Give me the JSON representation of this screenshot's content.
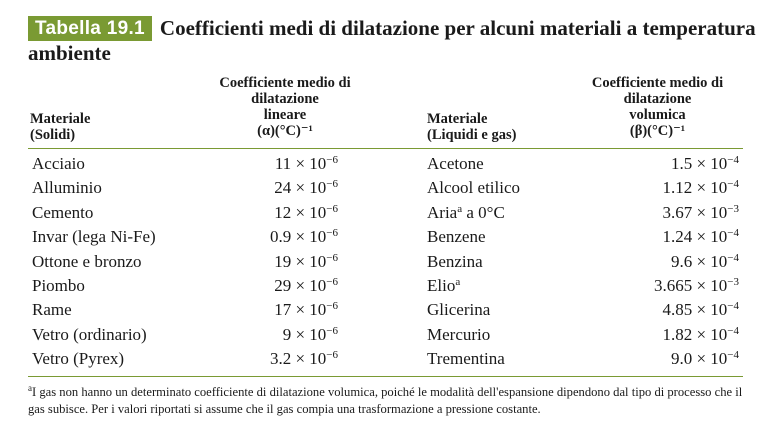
{
  "title": {
    "tag": "Tabella 19.1",
    "text": "Coefficienti medi di dilatazione per alcuni materiali a temperatura ambiente"
  },
  "headers": {
    "solid_material": [
      "Materiale",
      "(Solidi)"
    ],
    "linear_coeff": [
      "Coefficiente medio di",
      "dilatazione",
      "lineare",
      "(α)(°C)⁻¹"
    ],
    "fluid_material": [
      "Materiale",
      "(Liquidi e gas)"
    ],
    "volume_coeff": [
      "Coefficiente medio di",
      "dilatazione",
      "volumica",
      "(β)(°C)⁻¹"
    ]
  },
  "solids": [
    {
      "name": "Acciaio",
      "mantissa": "11",
      "exp": "−6"
    },
    {
      "name": "Alluminio",
      "mantissa": "24",
      "exp": "−6"
    },
    {
      "name": "Cemento",
      "mantissa": "12",
      "exp": "−6"
    },
    {
      "name": "Invar (lega Ni-Fe)",
      "mantissa": "0.9",
      "exp": "−6"
    },
    {
      "name": "Ottone e bronzo",
      "mantissa": "19",
      "exp": "−6"
    },
    {
      "name": "Piombo",
      "mantissa": "29",
      "exp": "−6"
    },
    {
      "name": "Rame",
      "mantissa": "17",
      "exp": "−6"
    },
    {
      "name": "Vetro (ordinario)",
      "mantissa": "9",
      "exp": "−6"
    },
    {
      "name": "Vetro (Pyrex)",
      "mantissa": "3.2",
      "exp": "−6"
    }
  ],
  "fluids": [
    {
      "name": "Acetone",
      "note": "",
      "suffix": "",
      "mantissa": "1.5",
      "exp": "−4"
    },
    {
      "name": "Alcool etilico",
      "note": "",
      "suffix": "",
      "mantissa": "1.12",
      "exp": "−4"
    },
    {
      "name": "Aria",
      "note": "a",
      "suffix": " a 0°C",
      "mantissa": "3.67",
      "exp": "−3"
    },
    {
      "name": "Benzene",
      "note": "",
      "suffix": "",
      "mantissa": "1.24",
      "exp": "−4"
    },
    {
      "name": "Benzina",
      "note": "",
      "suffix": "",
      "mantissa": "9.6",
      "exp": "−4"
    },
    {
      "name": "Elio",
      "note": "a",
      "suffix": "",
      "mantissa": "3.665",
      "exp": "−3"
    },
    {
      "name": "Glicerina",
      "note": "",
      "suffix": "",
      "mantissa": "4.85",
      "exp": "−4"
    },
    {
      "name": "Mercurio",
      "note": "",
      "suffix": "",
      "mantissa": "1.82",
      "exp": "−4"
    },
    {
      "name": "Trementina",
      "note": "",
      "suffix": "",
      "mantissa": "9.0",
      "exp": "−4"
    }
  ],
  "times_symbol": "×",
  "base": "10",
  "footnote": {
    "mark": "a",
    "text": "I gas non hanno un determinato coefficiente di dilatazione volumica, poiché le modalità dell'espansione dipendono dal tipo di processo che il gas subisce. Per i valori riportati si assume che il gas compia una trasformazione a pressione costante."
  }
}
